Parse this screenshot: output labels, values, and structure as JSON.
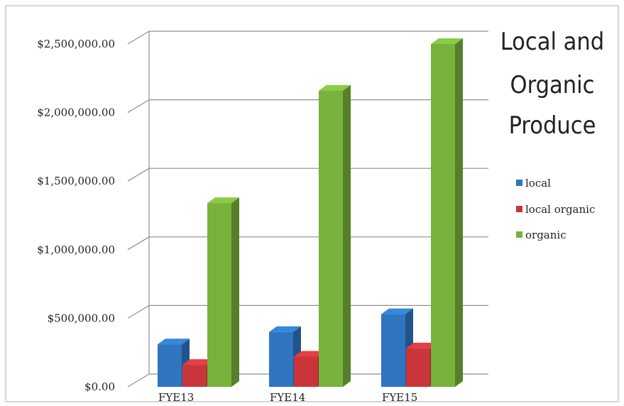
{
  "chart_data": {
    "type": "bar",
    "title": "Local and Organic Produce",
    "title_lines": [
      "Local and",
      "Organic",
      "Produce"
    ],
    "categories": [
      "FYE13",
      "FYE14",
      "FYE15"
    ],
    "series": [
      {
        "name": "local",
        "color": "#2f75c0",
        "values": [
          310000,
          400000,
          530000
        ]
      },
      {
        "name": "local organic",
        "color": "#c9353b",
        "values": [
          160000,
          220000,
          280000
        ]
      },
      {
        "name": "organic",
        "color": "#78b13c",
        "values": [
          1340000,
          2160000,
          2500000
        ]
      }
    ],
    "yticks": [
      "$0.00",
      "$500,000.00",
      "$1,000,000.00",
      "$1,500,000.00",
      "$2,000,000.00",
      "$2,500,000.00"
    ],
    "ylim": [
      0,
      2500000
    ],
    "grid": true,
    "legend_position": "right",
    "style": "3d-column"
  }
}
